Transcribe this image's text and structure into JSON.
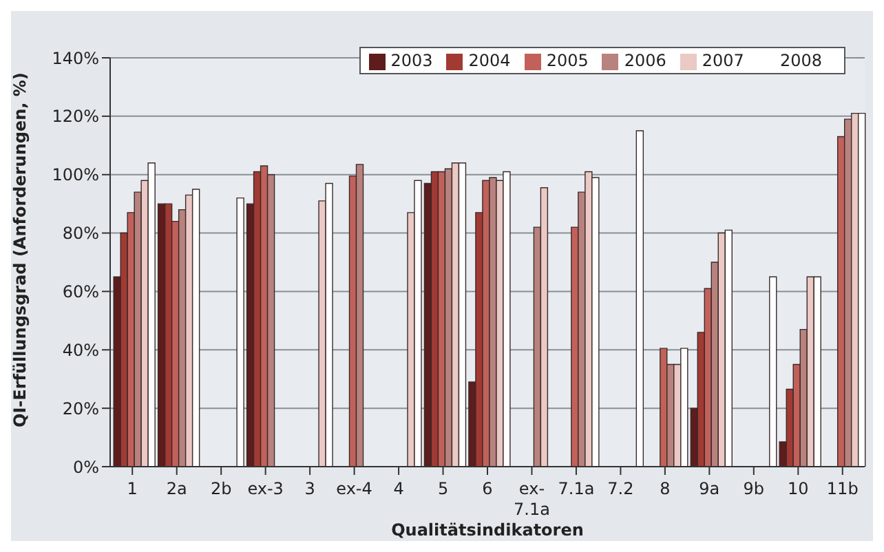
{
  "chart_data": {
    "type": "bar",
    "xlabel": "Qualitätsindikatoren",
    "ylabel": "QI-Erfüllungsgrad (Anforderungen, %)",
    "categories": [
      "1",
      "2a",
      "2b",
      "ex-3",
      "3",
      "ex-4",
      "4",
      "5",
      "6",
      "ex-7.1a",
      "7.1a",
      "7.2",
      "8",
      "9a",
      "9b",
      "10",
      "11b"
    ],
    "series": [
      {
        "name": "2003",
        "color": "#5e1c1c",
        "values": [
          65,
          90,
          null,
          90,
          null,
          null,
          null,
          97,
          29,
          null,
          null,
          null,
          null,
          20,
          null,
          8.5,
          null
        ]
      },
      {
        "name": "2004",
        "color": "#a23a33",
        "values": [
          80,
          90,
          null,
          101,
          null,
          null,
          null,
          101,
          87,
          null,
          null,
          null,
          null,
          46,
          null,
          26.5,
          null
        ]
      },
      {
        "name": "2005",
        "color": "#c2615a",
        "values": [
          87,
          84,
          null,
          103,
          null,
          99.5,
          null,
          101,
          98,
          null,
          82,
          null,
          40.5,
          61,
          null,
          35,
          113
        ]
      },
      {
        "name": "2006",
        "color": "#b8827e",
        "values": [
          94,
          88,
          null,
          100,
          null,
          103.5,
          null,
          102,
          99,
          82,
          94,
          null,
          35,
          70,
          null,
          47,
          119
        ]
      },
      {
        "name": "2007",
        "color": "#ebc9c5",
        "values": [
          98,
          93,
          null,
          null,
          91,
          null,
          87,
          104,
          98,
          95.5,
          101,
          null,
          35,
          80,
          null,
          65,
          121
        ]
      },
      {
        "name": "2008",
        "color": "#ffffff",
        "values": [
          104,
          95,
          92,
          null,
          97,
          null,
          98,
          104,
          101,
          null,
          99,
          115,
          40.5,
          81,
          65,
          65,
          121
        ]
      }
    ],
    "ylim": [
      0,
      140
    ],
    "yticks": [
      {
        "value": 0,
        "label": "0%"
      },
      {
        "value": 20,
        "label": "20%"
      },
      {
        "value": 40,
        "label": "40%"
      },
      {
        "value": 60,
        "label": "60%"
      },
      {
        "value": 80,
        "label": "80%"
      },
      {
        "value": 100,
        "label": "100%"
      },
      {
        "value": 120,
        "label": "120%"
      },
      {
        "value": 140,
        "label": "140%"
      }
    ],
    "grid": "y",
    "legend": "top right"
  }
}
